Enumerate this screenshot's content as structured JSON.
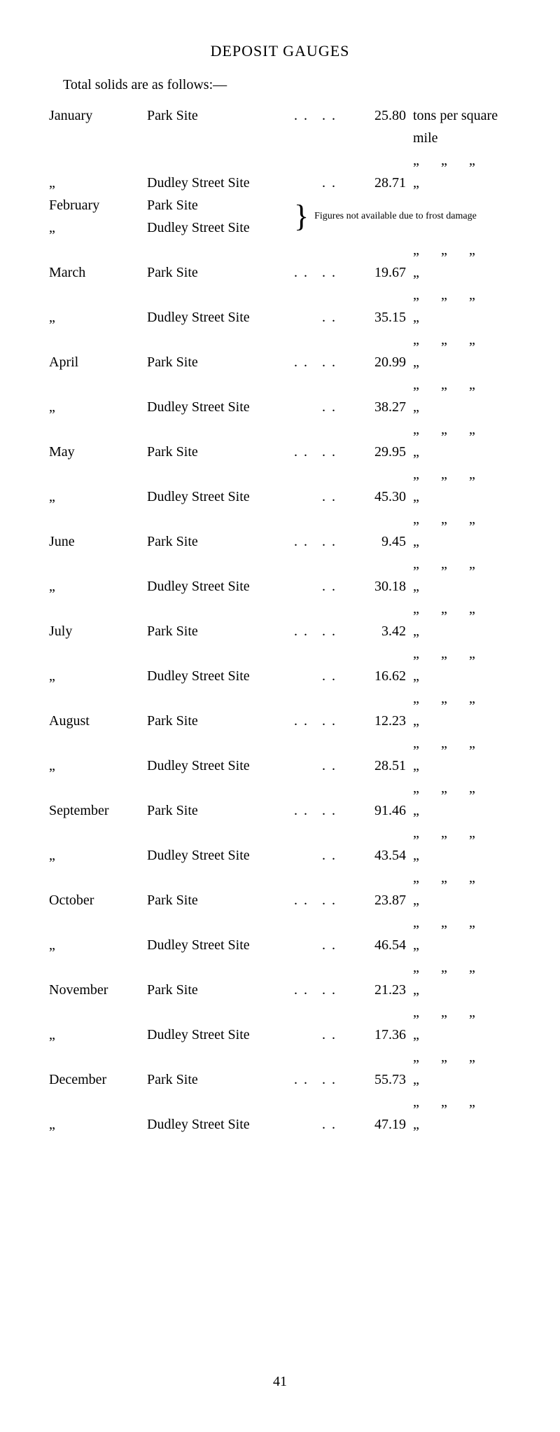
{
  "title": "DEPOSIT GAUGES",
  "subtitle": "Total solids are as follows:—",
  "unit_first": "tons per square mile",
  "ditto_mark": "„",
  "dots": ". .",
  "na_text": "Figures not available due to frost damage",
  "page_number": "41",
  "rows": [
    {
      "month": "January",
      "site": "Park Site",
      "dots1": ". .",
      "dots2": ". .",
      "value": "25.80",
      "unit_full": true
    },
    {
      "month": "„",
      "site": "Dudley Street Site",
      "dots1": "",
      "dots2": ". .",
      "value": "28.71"
    },
    {
      "month": "February",
      "site": "Park Site",
      "dots1": ". .",
      "dots2": "",
      "na": true
    },
    {
      "month": "„",
      "site": "Dudley Street Site",
      "dots1": "",
      "dots2": "",
      "na": true
    },
    {
      "month": "March",
      "site": "Park Site",
      "dots1": ". .",
      "dots2": ". .",
      "value": "19.67"
    },
    {
      "month": "„",
      "site": "Dudley Street Site",
      "dots1": "",
      "dots2": ". .",
      "value": "35.15"
    },
    {
      "month": "April",
      "site": "Park Site",
      "dots1": ". .",
      "dots2": ". .",
      "value": "20.99"
    },
    {
      "month": "„",
      "site": "Dudley Street Site",
      "dots1": "",
      "dots2": ". .",
      "value": "38.27"
    },
    {
      "month": "May",
      "site": "Park Site",
      "dots1": ". .",
      "dots2": ". .",
      "value": "29.95"
    },
    {
      "month": "„",
      "site": "Dudley Street Site",
      "dots1": "",
      "dots2": ". .",
      "value": "45.30"
    },
    {
      "month": "June",
      "site": "Park Site",
      "dots1": ". .",
      "dots2": ". .",
      "value": "9.45"
    },
    {
      "month": "„",
      "site": "Dudley Street Site",
      "dots1": "",
      "dots2": ". .",
      "value": "30.18"
    },
    {
      "month": "July",
      "site": "Park Site",
      "dots1": ". .",
      "dots2": ". .",
      "value": "3.42"
    },
    {
      "month": "„",
      "site": "Dudley Street Site",
      "dots1": "",
      "dots2": ". .",
      "value": "16.62"
    },
    {
      "month": "August",
      "site": "Park Site",
      "dots1": ". .",
      "dots2": ". .",
      "value": "12.23"
    },
    {
      "month": "„",
      "site": "Dudley Street Site",
      "dots1": "",
      "dots2": ". .",
      "value": "28.51"
    },
    {
      "month": "September",
      "site": "Park Site",
      "dots1": ". .",
      "dots2": ". .",
      "value": "91.46"
    },
    {
      "month": "„",
      "site": "Dudley Street Site",
      "dots1": "",
      "dots2": ". .",
      "value": "43.54"
    },
    {
      "month": "October",
      "site": "Park Site",
      "dots1": ". .",
      "dots2": ". .",
      "value": "23.87"
    },
    {
      "month": "„",
      "site": "Dudley Street Site",
      "dots1": "",
      "dots2": ". .",
      "value": "46.54"
    },
    {
      "month": "November",
      "site": "Park Site",
      "dots1": ". .",
      "dots2": ". .",
      "value": "21.23"
    },
    {
      "month": "„",
      "site": "Dudley Street Site",
      "dots1": "",
      "dots2": ". .",
      "value": "17.36"
    },
    {
      "month": "December",
      "site": "Park Site",
      "dots1": ". .",
      "dots2": ". .",
      "value": "55.73"
    },
    {
      "month": "„",
      "site": "Dudley Street Site",
      "dots1": "",
      "dots2": ". .",
      "value": "47.19"
    }
  ]
}
